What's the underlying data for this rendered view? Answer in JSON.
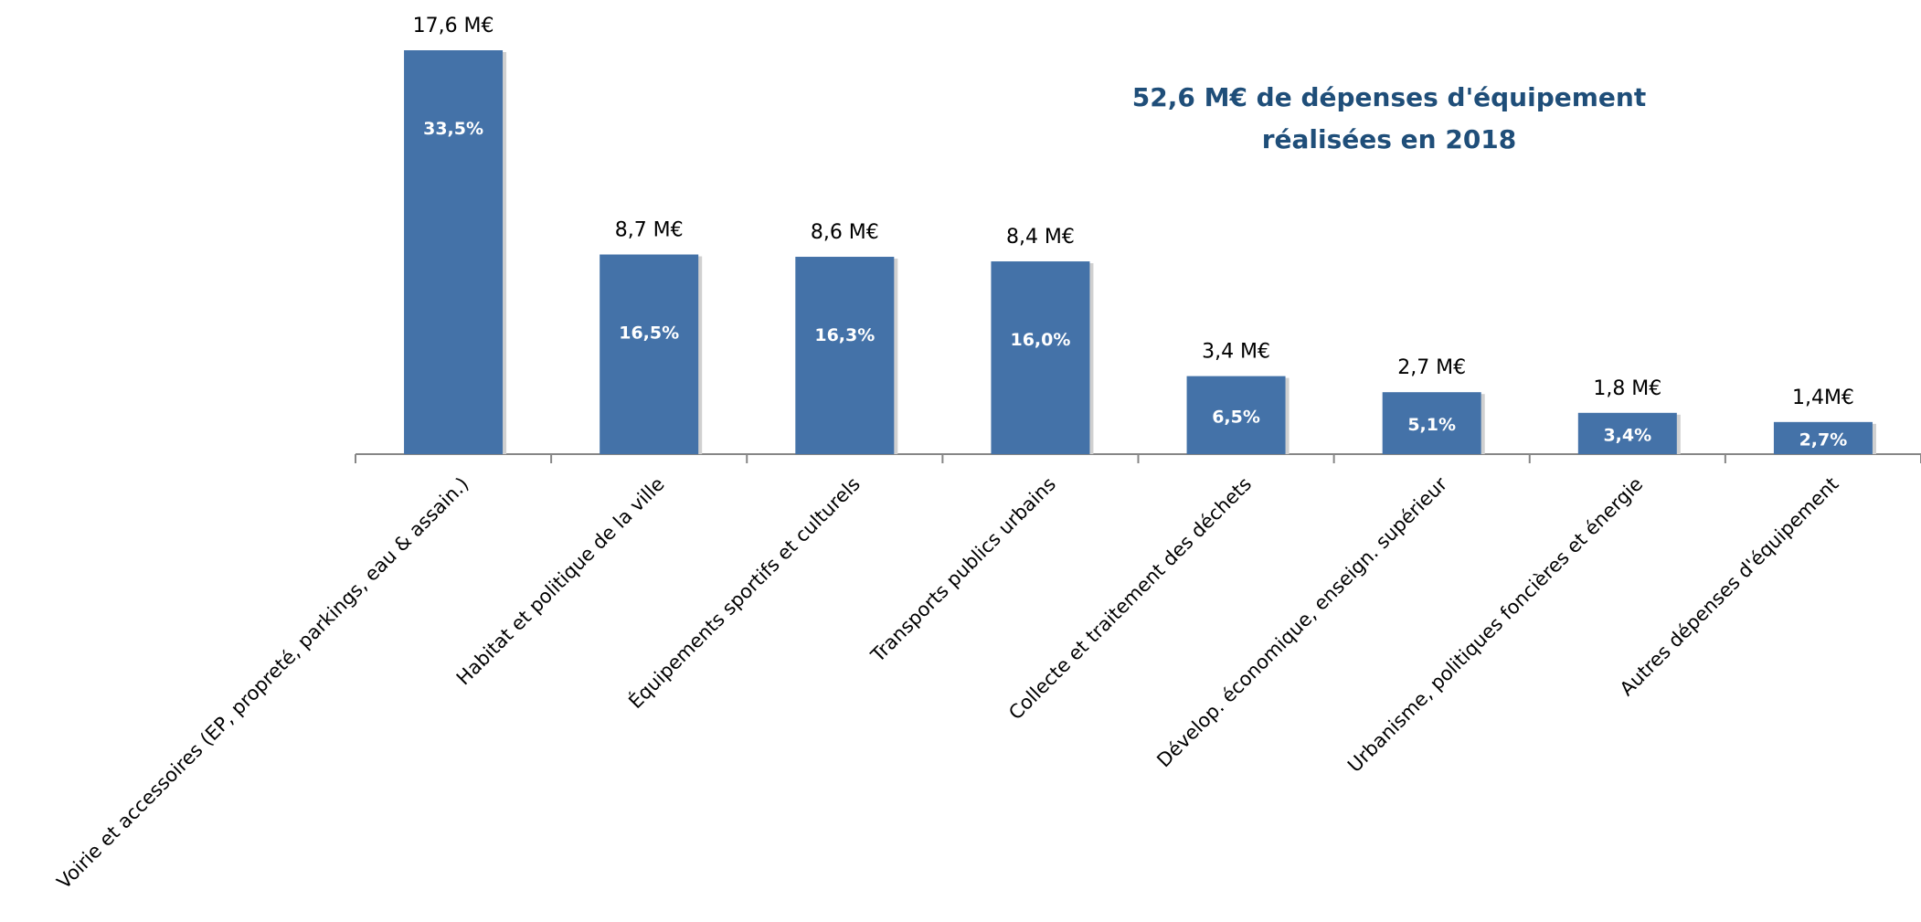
{
  "chart_data": {
    "type": "bar",
    "title_lines": [
      "52,6 M€ de dépenses d'équipement",
      "réalisées en 2018"
    ],
    "xlabel": "",
    "ylabel": "",
    "ylim": [
      0,
      17.6
    ],
    "grid": false,
    "legend": "none",
    "bar_color": "#4472a8",
    "title_color": "#1f4e79",
    "categories": [
      "Voirie et accessoires (EP, propreté, parkings, eau & assain.)",
      "Habitat et politique de la ville",
      "Équipements sportifs et culturels",
      "Transports publics urbains",
      "Collecte et traitement des déchets",
      "Dévelop. économique, enseign. supérieur",
      "Urbanisme, politiques foncières et énergie",
      "Autres dépenses d'équipement"
    ],
    "values": [
      17.6,
      8.7,
      8.6,
      8.4,
      3.4,
      2.7,
      1.8,
      1.4
    ],
    "value_labels": [
      "17,6 M€",
      "8,7 M€",
      "8,6 M€",
      "8,4 M€",
      "3,4 M€",
      "2,7 M€",
      "1,8 M€",
      "1,4M€"
    ],
    "percent_labels": [
      "33,5%",
      "16,5%",
      "16,3%",
      "16,0%",
      "6,5%",
      "5,1%",
      "3,4%",
      "2,7%"
    ]
  }
}
